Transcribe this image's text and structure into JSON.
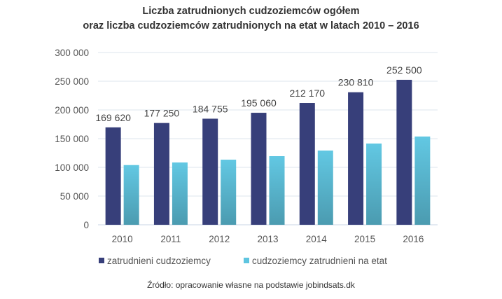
{
  "chart_data": {
    "type": "bar",
    "title": [
      "Liczba zatrudnionych cudzoziemców ogółem",
      "oraz liczba cudzoziemców zatrudnionych na etat w latach 2010 – 2016"
    ],
    "categories": [
      "2010",
      "2011",
      "2012",
      "2013",
      "2014",
      "2015",
      "2016"
    ],
    "series": [
      {
        "name": "zatrudnieni cudzoziemcy",
        "values": [
          169620,
          177250,
          184755,
          195060,
          212170,
          230810,
          252500
        ],
        "labels": [
          "169 620",
          "177 250",
          "184 755",
          "195 060",
          "212 170",
          "230 810",
          "252 500"
        ],
        "color": "#373f7a"
      },
      {
        "name": "cudzoziemcy zatrudnieni na etat",
        "values": [
          104000,
          108500,
          113400,
          119500,
          129300,
          141500,
          153700
        ],
        "color": "#5ec5e0"
      }
    ],
    "ylim": [
      0,
      300000
    ],
    "yticks": [
      0,
      50000,
      100000,
      150000,
      200000,
      250000,
      300000
    ],
    "ytick_labels": [
      "0",
      "50 000",
      "100 000",
      "150 000",
      "200 000",
      "250 000",
      "300 000"
    ],
    "grid": true,
    "legend": "bottom",
    "source": "Źródło: opracowanie własne na podstawie jobindsats.dk"
  }
}
